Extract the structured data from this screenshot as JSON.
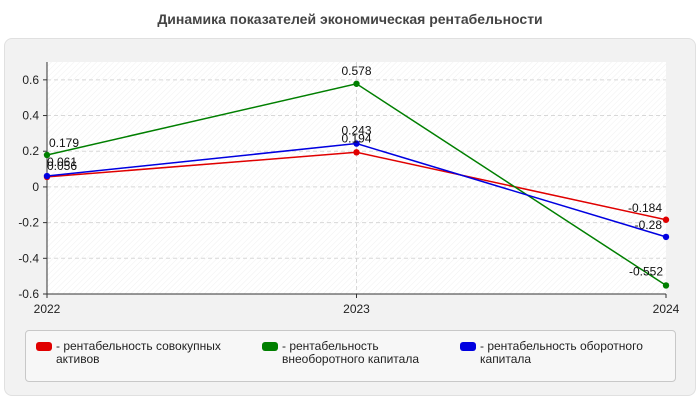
{
  "chart_data": {
    "type": "line",
    "title": "Динамика показателей экономическая рентабельности",
    "categories": [
      "2022",
      "2023",
      "2024"
    ],
    "series": [
      {
        "name": "- рентабельность совокупных активов",
        "color": "#e00000",
        "values": [
          0.056,
          0.194,
          -0.184
        ],
        "labels": [
          "0.056",
          "0.194",
          "-0.184"
        ]
      },
      {
        "name": "- рентабельность внеоборотного капитала",
        "color": "#007f00",
        "values": [
          0.179,
          0.578,
          -0.552
        ],
        "labels": [
          "0.179",
          "0.578",
          "-0.552"
        ]
      },
      {
        "name": "- рентабельность оборотного капитала",
        "color": "#0000e0",
        "values": [
          0.061,
          0.243,
          -0.28
        ],
        "labels": [
          "0.061",
          "0.243",
          "-0.28"
        ]
      }
    ],
    "ylim": [
      -0.6,
      0.7
    ],
    "yticks": [
      -0.6,
      -0.4,
      -0.2,
      0,
      0.2,
      0.4,
      0.6
    ],
    "ytick_labels": [
      "-0.6",
      "-0.4",
      "-0.2",
      "0",
      "0.2",
      "0.4",
      "0.6"
    ],
    "grid": true,
    "legend": "bottom"
  }
}
